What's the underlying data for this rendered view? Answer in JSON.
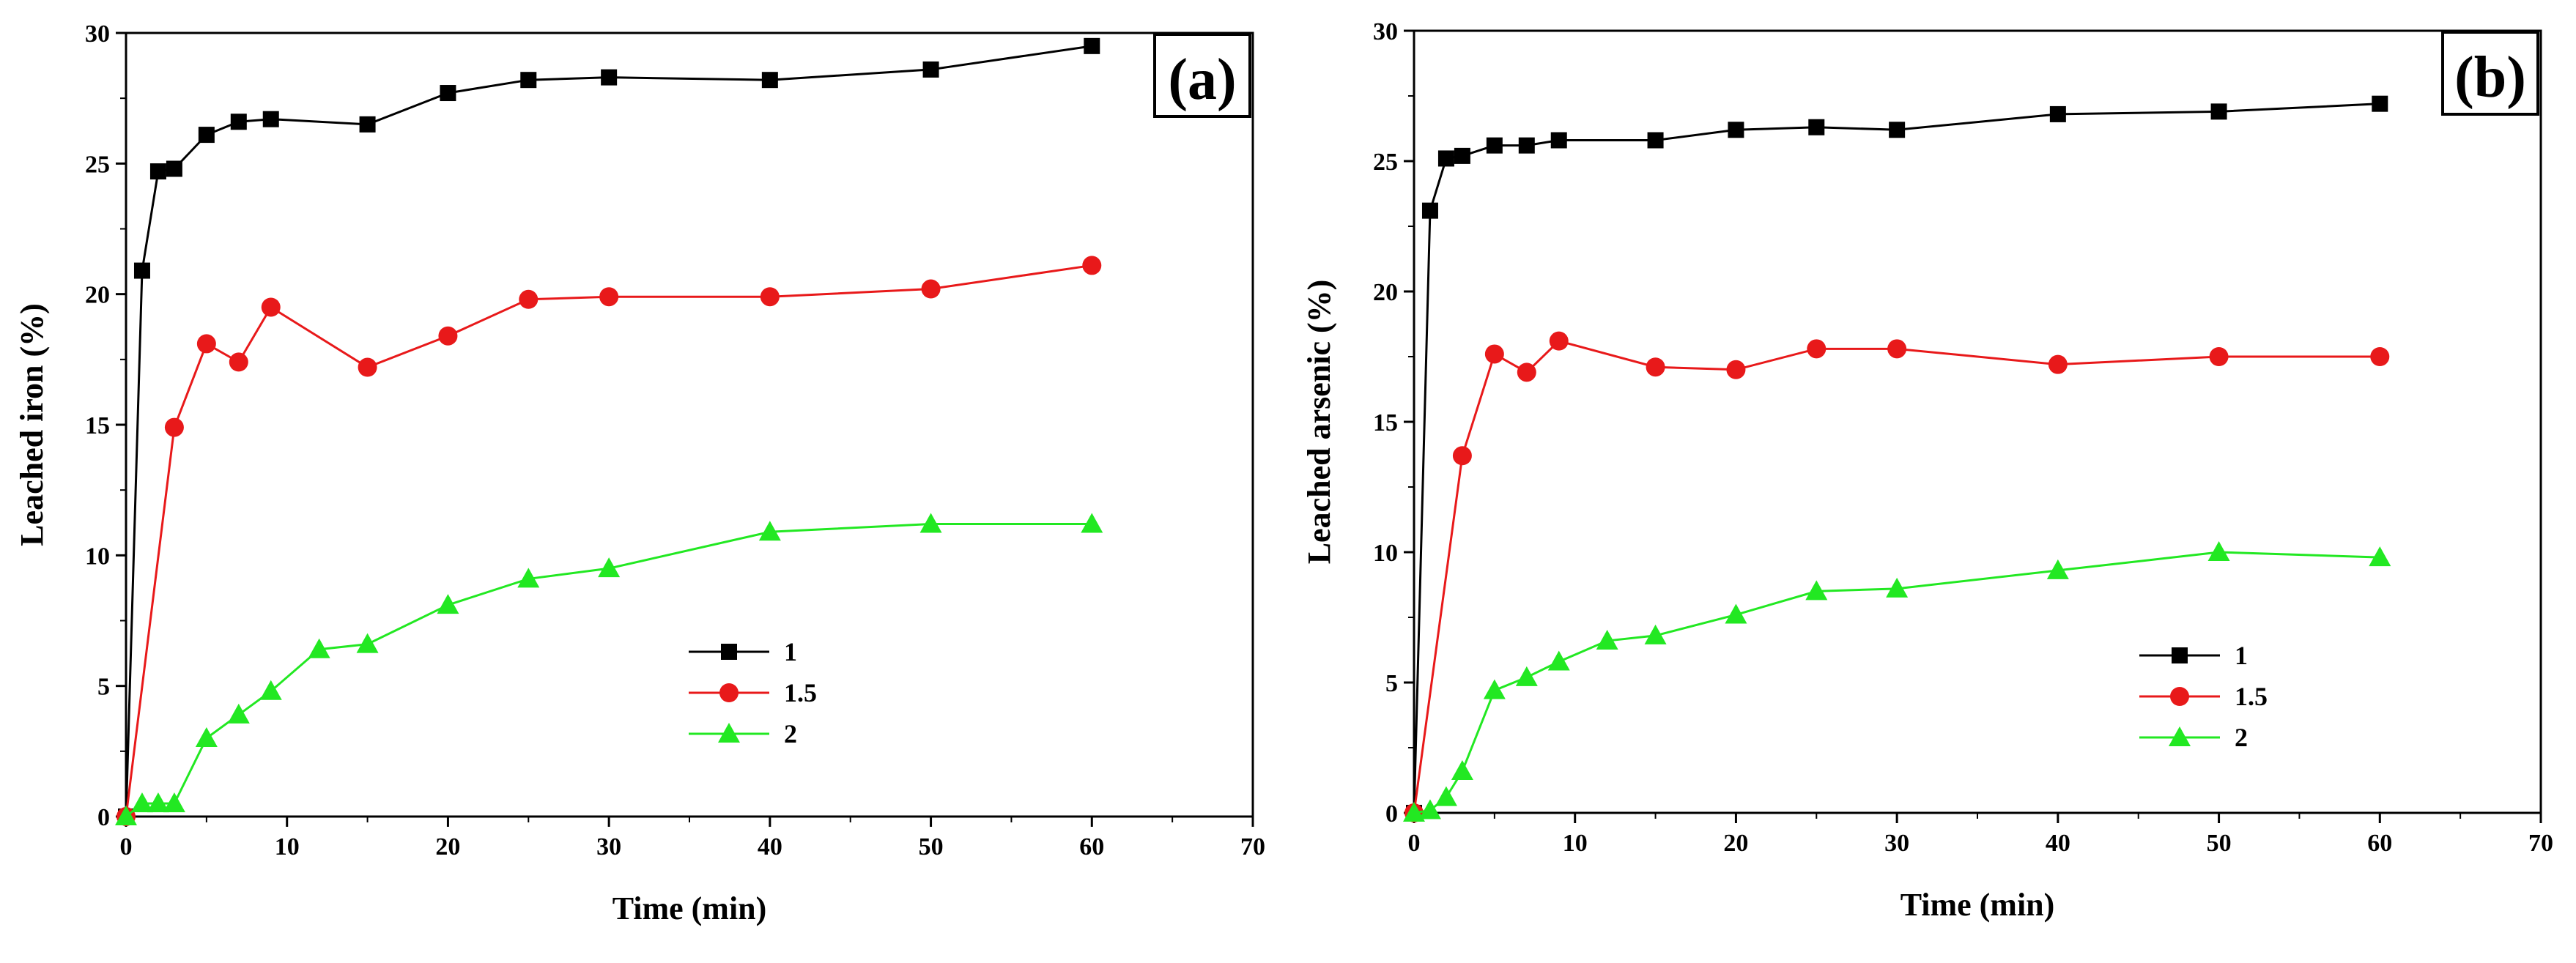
{
  "chart_data": [
    {
      "type": "line",
      "panel_label": "(a)",
      "xlabel": "Time (min)",
      "ylabel": "Leached iron (%)",
      "xlim": [
        0,
        70
      ],
      "ylim": [
        0,
        30
      ],
      "xticks": [
        "0",
        "10",
        "20",
        "30",
        "40",
        "50",
        "60",
        "70"
      ],
      "yticks": [
        "0",
        "5",
        "10",
        "15",
        "20",
        "25",
        "30"
      ],
      "grid": false,
      "legend_position": "center-right",
      "series": [
        {
          "name": "1",
          "color": "#000000",
          "marker": "square",
          "x": [
            0,
            1,
            2,
            3,
            5,
            7,
            9,
            15,
            20,
            25,
            30,
            40,
            50,
            60
          ],
          "y": [
            0,
            20.9,
            24.7,
            24.8,
            26.1,
            26.6,
            26.7,
            26.5,
            27.7,
            28.2,
            28.3,
            28.2,
            28.6,
            29.5
          ]
        },
        {
          "name": "1.5",
          "color": "#e8191a",
          "marker": "circle",
          "x": [
            0,
            3,
            5,
            7,
            9,
            15,
            20,
            25,
            30,
            40,
            50,
            60
          ],
          "y": [
            0,
            14.9,
            18.1,
            17.4,
            19.5,
            17.2,
            18.4,
            19.8,
            19.9,
            19.9,
            20.2,
            21.1
          ]
        },
        {
          "name": "2",
          "color": "#22e822",
          "marker": "triangle",
          "x": [
            0,
            1,
            2,
            3,
            5,
            7,
            9,
            12,
            15,
            20,
            25,
            30,
            40,
            50,
            60
          ],
          "y": [
            0,
            0.5,
            0.5,
            0.5,
            3.0,
            3.9,
            4.8,
            6.4,
            6.6,
            8.1,
            9.1,
            9.5,
            10.9,
            11.2,
            11.2
          ]
        }
      ]
    },
    {
      "type": "line",
      "panel_label": "(b)",
      "xlabel": "Time (min)",
      "ylabel": "Leached arsenic (%)",
      "xlim": [
        0,
        70
      ],
      "ylim": [
        0,
        30
      ],
      "xticks": [
        "0",
        "10",
        "20",
        "30",
        "40",
        "50",
        "60",
        "70"
      ],
      "yticks": [
        "0",
        "5",
        "10",
        "15",
        "20",
        "25",
        "30"
      ],
      "grid": false,
      "legend_position": "center-right",
      "series": [
        {
          "name": "1",
          "color": "#000000",
          "marker": "square",
          "x": [
            0,
            1,
            2,
            3,
            5,
            7,
            9,
            15,
            20,
            25,
            30,
            40,
            50,
            60
          ],
          "y": [
            0,
            23.1,
            25.1,
            25.2,
            25.6,
            25.6,
            25.8,
            25.8,
            26.2,
            26.3,
            26.2,
            26.8,
            26.9,
            27.2
          ]
        },
        {
          "name": "1.5",
          "color": "#e8191a",
          "marker": "circle",
          "x": [
            0,
            3,
            5,
            7,
            9,
            15,
            20,
            25,
            30,
            40,
            50,
            60
          ],
          "y": [
            0,
            13.7,
            17.6,
            16.9,
            18.1,
            17.1,
            17.0,
            17.8,
            17.8,
            17.2,
            17.5,
            17.5
          ]
        },
        {
          "name": "2",
          "color": "#22e822",
          "marker": "triangle",
          "x": [
            0,
            1,
            2,
            3,
            5,
            7,
            9,
            12,
            15,
            20,
            25,
            30,
            40,
            50,
            60
          ],
          "y": [
            0,
            0.1,
            0.6,
            1.6,
            4.7,
            5.2,
            5.8,
            6.6,
            6.8,
            7.6,
            8.5,
            8.6,
            9.3,
            10.0,
            9.8
          ]
        }
      ]
    }
  ]
}
